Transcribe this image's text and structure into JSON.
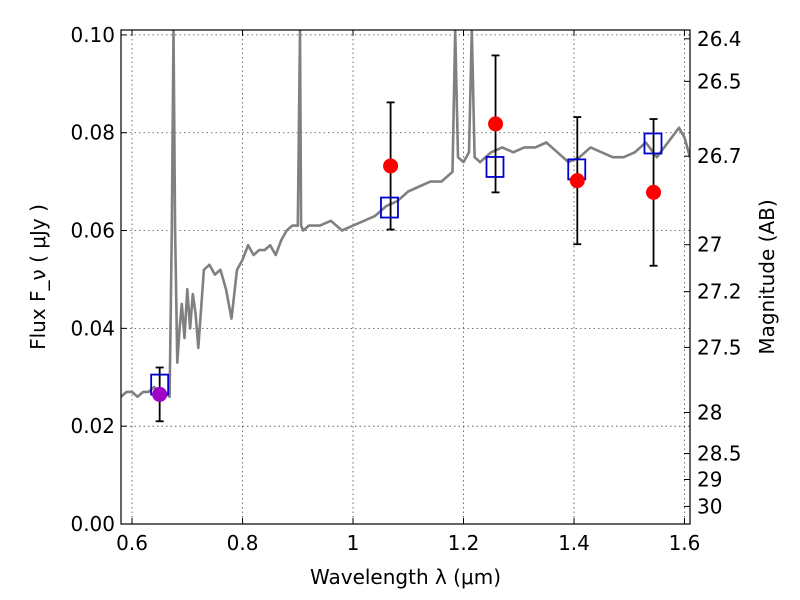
{
  "chart_data": {
    "type": "scatter",
    "xlabel": "Wavelength  λ (μm)",
    "ylabel": "Flux  F_ν  ( μJy )",
    "ylabel2": "Magnitude (AB)",
    "xlim": [
      0.58,
      1.61
    ],
    "ylim": [
      0.0,
      0.101
    ],
    "grid": true,
    "x_ticks": [
      0.6,
      0.8,
      1.0,
      1.2,
      1.4,
      1.6
    ],
    "x_tick_labels": [
      "0.6",
      "0.8",
      "1",
      "1.2",
      "1.4",
      "1.6"
    ],
    "y_ticks": [
      0.0,
      0.02,
      0.04,
      0.06,
      0.08,
      0.1
    ],
    "y_tick_labels": [
      "0.00",
      "0.02",
      "0.04",
      "0.06",
      "0.08",
      "0.10"
    ],
    "mag_ticks": [
      {
        "label": "26.4",
        "flux": 0.0992
      },
      {
        "label": "26.5",
        "flux": 0.0905
      },
      {
        "label": "26.7",
        "flux": 0.0752
      },
      {
        "label": "27",
        "flux": 0.0571
      },
      {
        "label": "27.2",
        "flux": 0.0475
      },
      {
        "label": "27.5",
        "flux": 0.0361
      },
      {
        "label": "28",
        "flux": 0.0228
      },
      {
        "label": "28.5",
        "flux": 0.0144
      },
      {
        "label": "29",
        "flux": 0.0091
      },
      {
        "label": "30",
        "flux": 0.0036
      }
    ],
    "series": [
      {
        "kind": "model-spectrum",
        "color": "#808080",
        "x": [
          0.58,
          0.59,
          0.6,
          0.61,
          0.62,
          0.63,
          0.64,
          0.65,
          0.66,
          0.668,
          0.672,
          0.675,
          0.678,
          0.682,
          0.686,
          0.69,
          0.695,
          0.7,
          0.705,
          0.71,
          0.715,
          0.72,
          0.73,
          0.74,
          0.75,
          0.76,
          0.77,
          0.78,
          0.79,
          0.8,
          0.81,
          0.82,
          0.83,
          0.84,
          0.85,
          0.86,
          0.87,
          0.88,
          0.89,
          0.9,
          0.904,
          0.906,
          0.91,
          0.92,
          0.94,
          0.96,
          0.98,
          1.0,
          1.02,
          1.04,
          1.06,
          1.08,
          1.1,
          1.12,
          1.14,
          1.16,
          1.18,
          1.185,
          1.19,
          1.2,
          1.21,
          1.215,
          1.22,
          1.23,
          1.25,
          1.27,
          1.29,
          1.31,
          1.33,
          1.35,
          1.37,
          1.39,
          1.41,
          1.43,
          1.45,
          1.47,
          1.49,
          1.51,
          1.53,
          1.55,
          1.57,
          1.59,
          1.6,
          1.61
        ],
        "y": [
          0.026,
          0.027,
          0.027,
          0.026,
          0.027,
          0.027,
          0.028,
          0.027,
          0.027,
          0.026,
          0.06,
          0.101,
          0.06,
          0.033,
          0.04,
          0.045,
          0.038,
          0.048,
          0.04,
          0.047,
          0.043,
          0.036,
          0.052,
          0.053,
          0.051,
          0.052,
          0.048,
          0.042,
          0.052,
          0.054,
          0.057,
          0.055,
          0.056,
          0.056,
          0.057,
          0.055,
          0.058,
          0.06,
          0.061,
          0.061,
          0.101,
          0.061,
          0.06,
          0.061,
          0.061,
          0.062,
          0.06,
          0.061,
          0.062,
          0.063,
          0.065,
          0.066,
          0.068,
          0.069,
          0.07,
          0.07,
          0.072,
          0.101,
          0.075,
          0.074,
          0.076,
          0.101,
          0.075,
          0.074,
          0.076,
          0.077,
          0.076,
          0.077,
          0.077,
          0.078,
          0.076,
          0.074,
          0.075,
          0.077,
          0.076,
          0.075,
          0.075,
          0.076,
          0.078,
          0.075,
          0.078,
          0.081,
          0.079,
          0.075
        ]
      },
      {
        "kind": "model-photometry",
        "marker": "open-square",
        "color": "#0000cc",
        "x": [
          0.65,
          1.066,
          1.257,
          1.405,
          1.543
        ],
        "y": [
          0.0285,
          0.0647,
          0.073,
          0.0725,
          0.0778
        ]
      },
      {
        "kind": "observed-photometry",
        "marker": "filled-circle",
        "x": [
          0.65,
          1.068,
          1.258,
          1.406,
          1.544
        ],
        "y": [
          0.0265,
          0.0732,
          0.0818,
          0.0702,
          0.0678
        ],
        "yerr": [
          0.0055,
          0.013,
          0.014,
          0.013,
          0.015
        ],
        "colors": [
          "#a000c8",
          "#ff0000",
          "#ff0000",
          "#ff0000",
          "#ff0000"
        ]
      }
    ]
  }
}
